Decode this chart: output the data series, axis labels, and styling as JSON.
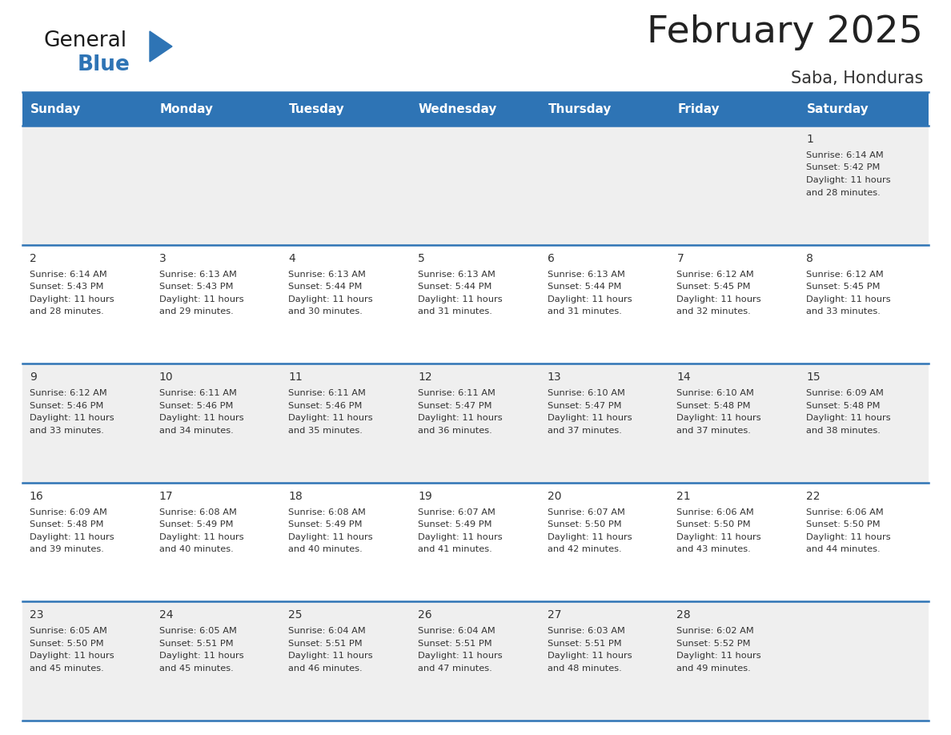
{
  "title": "February 2025",
  "subtitle": "Saba, Honduras",
  "header_bg": "#2E74B5",
  "header_text_color": "#FFFFFF",
  "day_names": [
    "Sunday",
    "Monday",
    "Tuesday",
    "Wednesday",
    "Thursday",
    "Friday",
    "Saturday"
  ],
  "cell_bg_row0": "#EFEFEF",
  "cell_bg_row1": "#FFFFFF",
  "cell_bg_row2": "#EFEFEF",
  "cell_bg_row3": "#FFFFFF",
  "cell_bg_row4": "#EFEFEF",
  "cell_text_color": "#333333",
  "day_num_color": "#333333",
  "line_color": "#2E74B5",
  "title_color": "#222222",
  "subtitle_color": "#333333",
  "logo_general_color": "#1A1A1A",
  "logo_blue_color": "#2E74B5",
  "logo_triangle_color": "#2E74B5",
  "days": [
    {
      "day": 1,
      "col": 6,
      "row": 0,
      "sunrise": "6:14 AM",
      "sunset": "5:42 PM",
      "daylight_h": "11 hours",
      "daylight_m": "28 minutes."
    },
    {
      "day": 2,
      "col": 0,
      "row": 1,
      "sunrise": "6:14 AM",
      "sunset": "5:43 PM",
      "daylight_h": "11 hours",
      "daylight_m": "28 minutes."
    },
    {
      "day": 3,
      "col": 1,
      "row": 1,
      "sunrise": "6:13 AM",
      "sunset": "5:43 PM",
      "daylight_h": "11 hours",
      "daylight_m": "29 minutes."
    },
    {
      "day": 4,
      "col": 2,
      "row": 1,
      "sunrise": "6:13 AM",
      "sunset": "5:44 PM",
      "daylight_h": "11 hours",
      "daylight_m": "30 minutes."
    },
    {
      "day": 5,
      "col": 3,
      "row": 1,
      "sunrise": "6:13 AM",
      "sunset": "5:44 PM",
      "daylight_h": "11 hours",
      "daylight_m": "31 minutes."
    },
    {
      "day": 6,
      "col": 4,
      "row": 1,
      "sunrise": "6:13 AM",
      "sunset": "5:44 PM",
      "daylight_h": "11 hours",
      "daylight_m": "31 minutes."
    },
    {
      "day": 7,
      "col": 5,
      "row": 1,
      "sunrise": "6:12 AM",
      "sunset": "5:45 PM",
      "daylight_h": "11 hours",
      "daylight_m": "32 minutes."
    },
    {
      "day": 8,
      "col": 6,
      "row": 1,
      "sunrise": "6:12 AM",
      "sunset": "5:45 PM",
      "daylight_h": "11 hours",
      "daylight_m": "33 minutes."
    },
    {
      "day": 9,
      "col": 0,
      "row": 2,
      "sunrise": "6:12 AM",
      "sunset": "5:46 PM",
      "daylight_h": "11 hours",
      "daylight_m": "33 minutes."
    },
    {
      "day": 10,
      "col": 1,
      "row": 2,
      "sunrise": "6:11 AM",
      "sunset": "5:46 PM",
      "daylight_h": "11 hours",
      "daylight_m": "34 minutes."
    },
    {
      "day": 11,
      "col": 2,
      "row": 2,
      "sunrise": "6:11 AM",
      "sunset": "5:46 PM",
      "daylight_h": "11 hours",
      "daylight_m": "35 minutes."
    },
    {
      "day": 12,
      "col": 3,
      "row": 2,
      "sunrise": "6:11 AM",
      "sunset": "5:47 PM",
      "daylight_h": "11 hours",
      "daylight_m": "36 minutes."
    },
    {
      "day": 13,
      "col": 4,
      "row": 2,
      "sunrise": "6:10 AM",
      "sunset": "5:47 PM",
      "daylight_h": "11 hours",
      "daylight_m": "37 minutes."
    },
    {
      "day": 14,
      "col": 5,
      "row": 2,
      "sunrise": "6:10 AM",
      "sunset": "5:48 PM",
      "daylight_h": "11 hours",
      "daylight_m": "37 minutes."
    },
    {
      "day": 15,
      "col": 6,
      "row": 2,
      "sunrise": "6:09 AM",
      "sunset": "5:48 PM",
      "daylight_h": "11 hours",
      "daylight_m": "38 minutes."
    },
    {
      "day": 16,
      "col": 0,
      "row": 3,
      "sunrise": "6:09 AM",
      "sunset": "5:48 PM",
      "daylight_h": "11 hours",
      "daylight_m": "39 minutes."
    },
    {
      "day": 17,
      "col": 1,
      "row": 3,
      "sunrise": "6:08 AM",
      "sunset": "5:49 PM",
      "daylight_h": "11 hours",
      "daylight_m": "40 minutes."
    },
    {
      "day": 18,
      "col": 2,
      "row": 3,
      "sunrise": "6:08 AM",
      "sunset": "5:49 PM",
      "daylight_h": "11 hours",
      "daylight_m": "40 minutes."
    },
    {
      "day": 19,
      "col": 3,
      "row": 3,
      "sunrise": "6:07 AM",
      "sunset": "5:49 PM",
      "daylight_h": "11 hours",
      "daylight_m": "41 minutes."
    },
    {
      "day": 20,
      "col": 4,
      "row": 3,
      "sunrise": "6:07 AM",
      "sunset": "5:50 PM",
      "daylight_h": "11 hours",
      "daylight_m": "42 minutes."
    },
    {
      "day": 21,
      "col": 5,
      "row": 3,
      "sunrise": "6:06 AM",
      "sunset": "5:50 PM",
      "daylight_h": "11 hours",
      "daylight_m": "43 minutes."
    },
    {
      "day": 22,
      "col": 6,
      "row": 3,
      "sunrise": "6:06 AM",
      "sunset": "5:50 PM",
      "daylight_h": "11 hours",
      "daylight_m": "44 minutes."
    },
    {
      "day": 23,
      "col": 0,
      "row": 4,
      "sunrise": "6:05 AM",
      "sunset": "5:50 PM",
      "daylight_h": "11 hours",
      "daylight_m": "45 minutes."
    },
    {
      "day": 24,
      "col": 1,
      "row": 4,
      "sunrise": "6:05 AM",
      "sunset": "5:51 PM",
      "daylight_h": "11 hours",
      "daylight_m": "45 minutes."
    },
    {
      "day": 25,
      "col": 2,
      "row": 4,
      "sunrise": "6:04 AM",
      "sunset": "5:51 PM",
      "daylight_h": "11 hours",
      "daylight_m": "46 minutes."
    },
    {
      "day": 26,
      "col": 3,
      "row": 4,
      "sunrise": "6:04 AM",
      "sunset": "5:51 PM",
      "daylight_h": "11 hours",
      "daylight_m": "47 minutes."
    },
    {
      "day": 27,
      "col": 4,
      "row": 4,
      "sunrise": "6:03 AM",
      "sunset": "5:51 PM",
      "daylight_h": "11 hours",
      "daylight_m": "48 minutes."
    },
    {
      "day": 28,
      "col": 5,
      "row": 4,
      "sunrise": "6:02 AM",
      "sunset": "5:52 PM",
      "daylight_h": "11 hours",
      "daylight_m": "49 minutes."
    }
  ],
  "num_rows": 5,
  "num_cols": 7
}
